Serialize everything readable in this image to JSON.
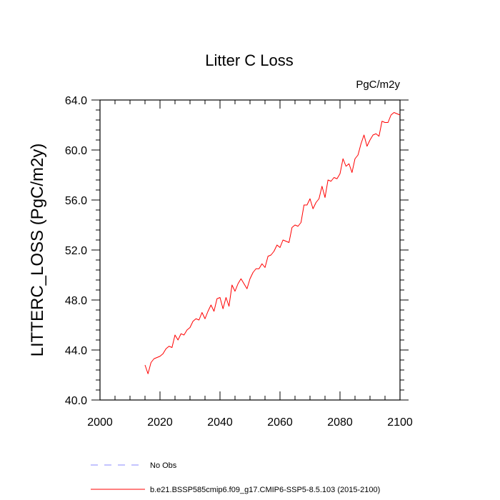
{
  "chart_data": {
    "type": "line",
    "title": "Litter C Loss",
    "units": "PgC/m2y",
    "ylabel": "LITTERC_LOSS  (PgC/m2y)",
    "xlabel": "",
    "xlim": [
      2000,
      2100
    ],
    "ylim": [
      40.0,
      64.0
    ],
    "x_ticks": [
      2000,
      2020,
      2040,
      2060,
      2080,
      2100
    ],
    "y_ticks": [
      40.0,
      44.0,
      48.0,
      52.0,
      56.0,
      60.0,
      64.0
    ],
    "y_tick_labels": [
      "40.0",
      "44.0",
      "48.0",
      "52.0",
      "56.0",
      "60.0",
      "64.0"
    ],
    "x_tick_labels": [
      "2000",
      "2020",
      "2040",
      "2060",
      "2080",
      "2100"
    ],
    "grid": false,
    "legend_placement": "bottom",
    "series": [
      {
        "name": "b.e21.BSSP585cmip6.f09_g17.CMIP6-SSP5-8.5.103 (2015-2100)",
        "color": "#ff0000",
        "style": "solid",
        "x": [
          2015,
          2016,
          2017,
          2018,
          2019,
          2020,
          2021,
          2022,
          2023,
          2024,
          2025,
          2026,
          2027,
          2028,
          2029,
          2030,
          2031,
          2032,
          2033,
          2034,
          2035,
          2036,
          2037,
          2038,
          2039,
          2040,
          2041,
          2042,
          2043,
          2044,
          2045,
          2046,
          2047,
          2048,
          2049,
          2050,
          2051,
          2052,
          2053,
          2054,
          2055,
          2056,
          2057,
          2058,
          2059,
          2060,
          2061,
          2062,
          2063,
          2064,
          2065,
          2066,
          2067,
          2068,
          2069,
          2070,
          2071,
          2072,
          2073,
          2074,
          2075,
          2076,
          2077,
          2078,
          2079,
          2080,
          2081,
          2082,
          2083,
          2084,
          2085,
          2086,
          2087,
          2088,
          2089,
          2090,
          2091,
          2092,
          2093,
          2094,
          2095,
          2096,
          2097,
          2098,
          2099,
          2100
        ],
        "values": [
          42.8,
          42.1,
          43.0,
          43.3,
          43.4,
          43.5,
          43.7,
          44.1,
          44.3,
          44.2,
          45.2,
          44.8,
          45.3,
          45.2,
          45.6,
          45.8,
          46.3,
          46.5,
          46.4,
          47.0,
          46.5,
          47.1,
          47.6,
          47.1,
          48.1,
          48.2,
          47.3,
          48.2,
          47.5,
          49.2,
          48.7,
          49.3,
          49.7,
          49.3,
          48.9,
          49.7,
          50.2,
          50.5,
          50.5,
          50.9,
          50.6,
          51.5,
          51.6,
          51.9,
          52.4,
          52.2,
          52.8,
          52.7,
          52.6,
          53.8,
          54.0,
          53.9,
          54.2,
          55.6,
          55.6,
          56.1,
          55.3,
          55.8,
          56.1,
          57.1,
          56.2,
          57.6,
          57.5,
          57.8,
          57.7,
          58.1,
          59.3,
          58.7,
          58.9,
          58.2,
          59.3,
          59.6,
          60.5,
          61.2,
          60.3,
          60.8,
          61.2,
          61.3,
          61.1,
          62.3,
          62.2,
          62.2,
          62.8,
          63.0,
          62.9,
          62.8
        ]
      }
    ],
    "reference": {
      "name": "No Obs",
      "color": "#8888ff",
      "style": "dashed"
    }
  }
}
